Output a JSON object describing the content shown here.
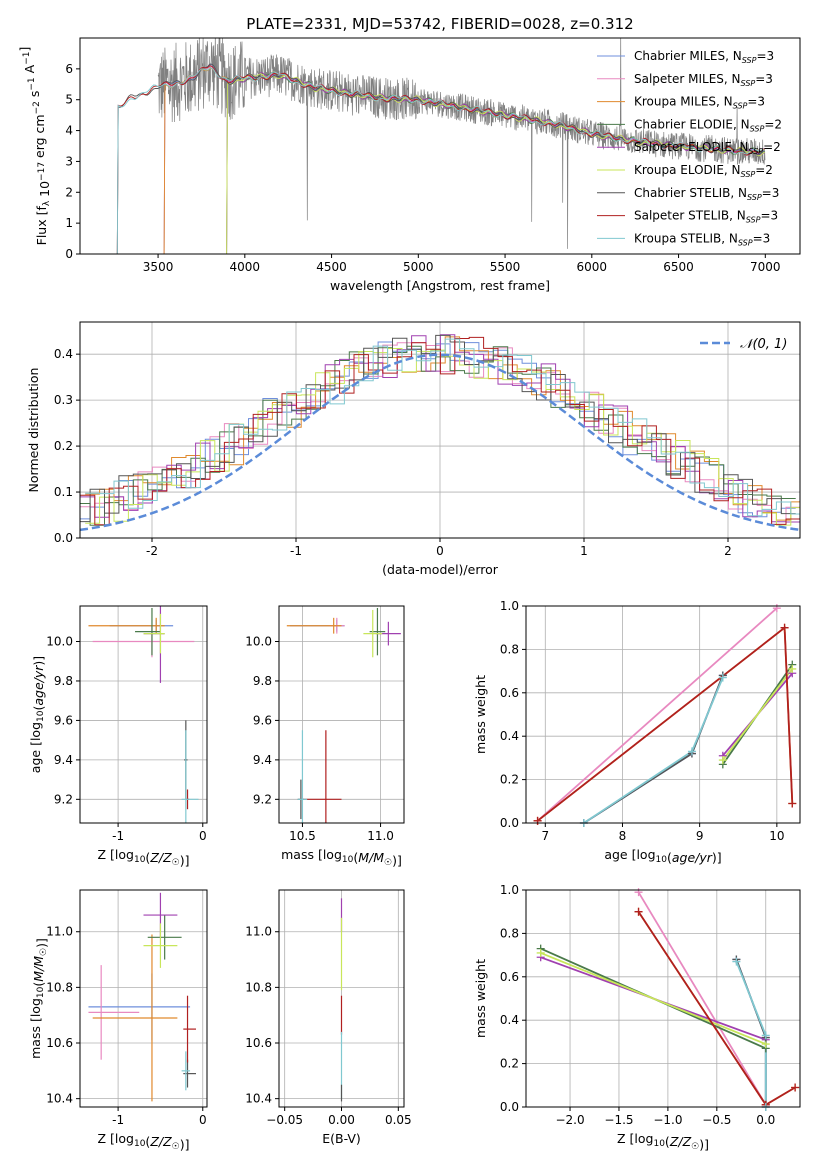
{
  "title": "PLATE=2331, MJD=53742, FIBERID=0028, z=0.312",
  "colors": {
    "Chabrier MILES": "#6f8fdc",
    "Salpeter MILES": "#e889c0",
    "Kroupa MILES": "#e08a2e",
    "Chabrier ELODIE": "#4a7a4a",
    "Salpeter ELODIE": "#a040b0",
    "Kroupa ELODIE": "#c8e65a",
    "Chabrier STELIB": "#555555",
    "Salpeter STELIB": "#b02020",
    "Kroupa STELIB": "#80c8d0",
    "data": "#808080",
    "grid": "#b0b0b0"
  },
  "chart_data": [
    {
      "id": "spectrum",
      "type": "line",
      "xlabel": "wavelength [Angstrom, rest frame]",
      "ylabel": "Flux [f_λ 10^-17 erg cm^-2 s^-1 A^-1]",
      "xlim": [
        3050,
        7200
      ],
      "ylim": [
        0,
        7
      ],
      "xticks": [
        3500,
        4000,
        4500,
        5000,
        5500,
        6000,
        6500,
        7000
      ],
      "yticks": [
        0,
        1,
        2,
        3,
        4,
        5,
        6
      ],
      "grid": false,
      "legend_position": "top-right",
      "legend": [
        {
          "base": "Chabrier MILES, N",
          "sub": "SSP",
          "tail": "=3"
        },
        {
          "base": "Salpeter MILES, N",
          "sub": "SSP",
          "tail": "=3"
        },
        {
          "base": "Kroupa MILES, N",
          "sub": "SSP",
          "tail": "=3"
        },
        {
          "base": "Chabrier ELODIE, N",
          "sub": "SSP",
          "tail": "=2"
        },
        {
          "base": "Salpeter ELODIE, N",
          "sub": "SSP",
          "tail": "=2"
        },
        {
          "base": "Kroupa ELODIE, N",
          "sub": "SSP",
          "tail": "=2"
        },
        {
          "base": "Chabrier STELIB, N",
          "sub": "SSP",
          "tail": "=3"
        },
        {
          "base": "Salpeter STELIB, N",
          "sub": "SSP",
          "tail": "=3"
        },
        {
          "base": "Kroupa STELIB, N",
          "sub": "SSP",
          "tail": "=3"
        }
      ],
      "model_start": {
        "STELIB": 3270,
        "MILES": 3540,
        "ELODIE": 3900
      },
      "continuum": [
        [
          3280,
          4.7
        ],
        [
          3350,
          5.1
        ],
        [
          3500,
          5.4
        ],
        [
          3700,
          5.7
        ],
        [
          3800,
          6.1
        ],
        [
          3900,
          5.6
        ],
        [
          4000,
          5.7
        ],
        [
          4200,
          5.8
        ],
        [
          4400,
          5.4
        ],
        [
          4600,
          5.2
        ],
        [
          4800,
          5.05
        ],
        [
          5000,
          5.0
        ],
        [
          5200,
          4.8
        ],
        [
          5400,
          4.6
        ],
        [
          5600,
          4.4
        ],
        [
          5800,
          4.2
        ],
        [
          6000,
          3.9
        ],
        [
          6200,
          3.7
        ],
        [
          6400,
          3.55
        ],
        [
          6600,
          3.45
        ],
        [
          6800,
          3.35
        ],
        [
          7000,
          3.3
        ]
      ]
    },
    {
      "id": "residuals",
      "type": "line",
      "xlabel": "(data-model)/error",
      "ylabel": "Normed distribution",
      "xlim": [
        -2.5,
        2.5
      ],
      "ylim": [
        0,
        0.47
      ],
      "xticks": [
        -2,
        -1,
        0,
        1,
        2
      ],
      "yticks": [
        0.0,
        0.1,
        0.2,
        0.3,
        0.4
      ],
      "grid": true,
      "legend": "𝒩(0, 1)",
      "gaussian": {
        "mean": 0,
        "sigma": 1
      }
    },
    {
      "id": "age-vs-Z",
      "type": "scatter",
      "xlabel": "Z [log10(Z/Z☉)]",
      "ylabel": "age  [log10(age/yr)]",
      "xlim": [
        -1.45,
        0.05
      ],
      "ylim": [
        9.08,
        10.18
      ],
      "xticks": [
        -1,
        0
      ],
      "yticks": [
        9.2,
        9.4,
        9.6,
        9.8,
        10.0
      ],
      "grid": true,
      "points": [
        {
          "model": "Chabrier MILES",
          "x": -0.55,
          "y": 10.08,
          "xerr": [
            0.55,
            0.2
          ],
          "yerr": 0.03
        },
        {
          "model": "Salpeter MILES",
          "x": -0.6,
          "y": 10.0,
          "xerr": [
            0.7,
            0.5
          ],
          "yerr": 0.08
        },
        {
          "model": "Kroupa MILES",
          "x": -0.55,
          "y": 10.08,
          "xerr": [
            0.8,
            0.1
          ],
          "yerr": 0.04
        },
        {
          "model": "Chabrier ELODIE",
          "x": -0.6,
          "y": 10.05,
          "xerr": [
            0.2,
            0.1
          ],
          "yerr": 0.12
        },
        {
          "model": "Salpeter ELODIE",
          "x": -0.5,
          "y": 10.04,
          "xerr": [
            0.2,
            0.05
          ],
          "yerr": 0.25
        },
        {
          "model": "Kroupa ELODIE",
          "x": -0.5,
          "y": 10.04,
          "xerr": [
            0.2,
            0.05
          ],
          "yerr": 0.1
        },
        {
          "model": "Chabrier STELIB",
          "x": -0.2,
          "y": 9.4,
          "xerr": [
            0.02,
            0.02
          ],
          "yerr": 0.2
        },
        {
          "model": "Salpeter STELIB",
          "x": -0.18,
          "y": 9.2,
          "xerr": [
            0.02,
            0.02
          ],
          "yerr": 0.05
        },
        {
          "model": "Kroupa STELIB",
          "x": -0.2,
          "y": 9.2,
          "xerr": [
            0.05,
            0.15
          ],
          "yerr": 0.35
        }
      ]
    },
    {
      "id": "age-vs-mass",
      "type": "scatter",
      "xlabel": "mass [log10(M/M☉)]",
      "ylabel": "",
      "xlim": [
        10.35,
        11.15
      ],
      "ylim": [
        9.08,
        10.18
      ],
      "xticks": [
        10.5,
        11.0
      ],
      "yticks": [
        9.2,
        9.4,
        9.6,
        9.8,
        10.0
      ],
      "grid": true,
      "points": [
        {
          "model": "Chabrier MILES",
          "x": 10.72,
          "y": 10.08,
          "xerr": [
            0.3,
            0.05
          ],
          "yerr": 0.03
        },
        {
          "model": "Salpeter MILES",
          "x": 10.72,
          "y": 10.08,
          "xerr": [
            0.05,
            0.05
          ],
          "yerr": 0.04
        },
        {
          "model": "Kroupa MILES",
          "x": 10.7,
          "y": 10.08,
          "xerr": [
            0.3,
            0.05
          ],
          "yerr": 0.04
        },
        {
          "model": "Chabrier ELODIE",
          "x": 10.98,
          "y": 10.05,
          "xerr": [
            0.05,
            0.05
          ],
          "yerr": 0.12
        },
        {
          "model": "Salpeter ELODIE",
          "x": 11.05,
          "y": 10.04,
          "xerr": [
            0.08,
            0.08
          ],
          "yerr": 0.06
        },
        {
          "model": "Kroupa ELODIE",
          "x": 10.95,
          "y": 10.04,
          "xerr": [
            0.06,
            0.06
          ],
          "yerr": 0.12
        },
        {
          "model": "Chabrier STELIB",
          "x": 10.49,
          "y": 9.2,
          "xerr": [
            0.02,
            0.02
          ],
          "yerr": 0.1
        },
        {
          "model": "Salpeter STELIB",
          "x": 10.65,
          "y": 9.2,
          "xerr": [
            0.15,
            0.1
          ],
          "yerr": 0.35
        },
        {
          "model": "Kroupa STELIB",
          "x": 10.5,
          "y": 9.2,
          "xerr": [
            0.03,
            0.03
          ],
          "yerr": 0.35
        }
      ]
    },
    {
      "id": "weight-vs-age",
      "type": "line",
      "xlabel": "age  [log10(age/yr)]",
      "ylabel": "mass weight",
      "xlim": [
        6.75,
        10.3
      ],
      "ylim": [
        0,
        1
      ],
      "xticks": [
        7,
        8,
        9,
        10
      ],
      "yticks": [
        0.0,
        0.2,
        0.4,
        0.6,
        0.8,
        1.0
      ],
      "grid": true,
      "series": [
        {
          "model": "Chabrier MILES",
          "x": [
            7.5,
            8.9,
            9.3
          ],
          "y": [
            0.0,
            0.32,
            0.68
          ]
        },
        {
          "model": "Salpeter MILES",
          "x": [
            6.9,
            10.0
          ],
          "y": [
            0.01,
            0.99
          ]
        },
        {
          "model": "Kroupa MILES",
          "x": [
            6.9,
            10.1,
            10.2
          ],
          "y": [
            0.01,
            0.9,
            0.09
          ]
        },
        {
          "model": "Chabrier ELODIE",
          "x": [
            9.3,
            10.2
          ],
          "y": [
            0.27,
            0.73
          ]
        },
        {
          "model": "Salpeter ELODIE",
          "x": [
            9.3,
            10.2
          ],
          "y": [
            0.31,
            0.69
          ]
        },
        {
          "model": "Kroupa ELODIE",
          "x": [
            9.3,
            10.2
          ],
          "y": [
            0.29,
            0.71
          ]
        },
        {
          "model": "Chabrier STELIB",
          "x": [
            7.5,
            8.9,
            9.3
          ],
          "y": [
            0.0,
            0.32,
            0.68
          ]
        },
        {
          "model": "Salpeter STELIB",
          "x": [
            6.9,
            10.1,
            10.2
          ],
          "y": [
            0.01,
            0.9,
            0.09
          ]
        },
        {
          "model": "Kroupa STELIB",
          "x": [
            7.5,
            8.9,
            9.3
          ],
          "y": [
            0.0,
            0.33,
            0.67
          ]
        }
      ]
    },
    {
      "id": "mass-vs-Z",
      "type": "scatter",
      "xlabel": "Z [log10(Z/Z☉)]",
      "ylabel": "mass [log10(M/M☉)]",
      "xlim": [
        -1.45,
        0.05
      ],
      "ylim": [
        10.37,
        11.15
      ],
      "xticks": [
        -1,
        0
      ],
      "yticks": [
        10.4,
        10.6,
        10.8,
        11.0
      ],
      "grid": true,
      "points": [
        {
          "model": "Chabrier MILES",
          "x": -0.6,
          "y": 10.73,
          "xerr": [
            0.75,
            0.45
          ],
          "yerr": 0.12
        },
        {
          "model": "Salpeter MILES",
          "x": -1.2,
          "y": 10.71,
          "xerr": [
            0.15,
            0.45
          ],
          "yerr": 0.17
        },
        {
          "model": "Kroupa MILES",
          "x": -0.6,
          "y": 10.69,
          "xerr": [
            0.7,
            0.3
          ],
          "yerr": 0.3
        },
        {
          "model": "Chabrier ELODIE",
          "x": -0.45,
          "y": 10.98,
          "xerr": [
            0.2,
            0.2
          ],
          "yerr": 0.08
        },
        {
          "model": "Salpeter ELODIE",
          "x": -0.5,
          "y": 11.06,
          "xerr": [
            0.2,
            0.2
          ],
          "yerr": 0.08
        },
        {
          "model": "Kroupa ELODIE",
          "x": -0.5,
          "y": 10.95,
          "xerr": [
            0.2,
            0.2
          ],
          "yerr": 0.08
        },
        {
          "model": "Chabrier STELIB",
          "x": -0.18,
          "y": 10.49,
          "xerr": [
            0.05,
            0.1
          ],
          "yerr": 0.05
        },
        {
          "model": "Salpeter STELIB",
          "x": -0.18,
          "y": 10.65,
          "xerr": [
            0.05,
            0.1
          ],
          "yerr": 0.12
        },
        {
          "model": "Kroupa STELIB",
          "x": -0.2,
          "y": 10.5,
          "xerr": [
            0.05,
            0.05
          ],
          "yerr": 0.07
        }
      ]
    },
    {
      "id": "mass-vs-EBV",
      "type": "scatter",
      "xlabel": "E(B-V)",
      "ylabel": "",
      "xlim": [
        -0.055,
        0.055
      ],
      "ylim": [
        10.37,
        11.15
      ],
      "xticks": [
        -0.05,
        0.0,
        0.05
      ],
      "yticks": [
        10.4,
        10.6,
        10.8,
        11.0
      ],
      "grid": true,
      "points": [
        {
          "model": "Salpeter ELODIE",
          "x": 0.0,
          "y": 11.06,
          "xerr": [
            0,
            0
          ],
          "yerr": 0.06
        },
        {
          "model": "Kroupa ELODIE",
          "x": 0.0,
          "y": 10.92,
          "xerr": [
            0,
            0
          ],
          "yerr": 0.13
        },
        {
          "model": "Salpeter STELIB",
          "x": 0.0,
          "y": 10.7,
          "xerr": [
            0,
            0
          ],
          "yerr": 0.07
        },
        {
          "model": "Kroupa STELIB",
          "x": 0.0,
          "y": 10.52,
          "xerr": [
            0,
            0
          ],
          "yerr": 0.12
        },
        {
          "model": "Chabrier STELIB",
          "x": 0.0,
          "y": 10.42,
          "xerr": [
            0,
            0
          ],
          "yerr": 0.03
        }
      ]
    },
    {
      "id": "weight-vs-Z",
      "type": "line",
      "xlabel": "Z [log10(Z/Z☉)]",
      "ylabel": "mass weight",
      "xlim": [
        -2.45,
        0.35
      ],
      "ylim": [
        0,
        1
      ],
      "xticks": [
        -2.0,
        -1.5,
        -1.0,
        -0.5,
        0.0
      ],
      "yticks": [
        0.0,
        0.2,
        0.4,
        0.6,
        0.8,
        1.0
      ],
      "grid": true,
      "series": [
        {
          "model": "Chabrier MILES",
          "x": [
            -0.3,
            0.0,
            0.0
          ],
          "y": [
            0.68,
            0.32,
            0.0
          ]
        },
        {
          "model": "Salpeter MILES",
          "x": [
            -1.3,
            0.0
          ],
          "y": [
            0.99,
            0.01
          ]
        },
        {
          "model": "Kroupa MILES",
          "x": [
            -1.3,
            0.0,
            0.3
          ],
          "y": [
            0.9,
            0.01,
            0.09
          ]
        },
        {
          "model": "Chabrier ELODIE",
          "x": [
            -2.3,
            0.0
          ],
          "y": [
            0.73,
            0.27
          ]
        },
        {
          "model": "Salpeter ELODIE",
          "x": [
            -2.3,
            0.0
          ],
          "y": [
            0.69,
            0.31
          ]
        },
        {
          "model": "Kroupa ELODIE",
          "x": [
            -2.3,
            0.0
          ],
          "y": [
            0.71,
            0.29
          ]
        },
        {
          "model": "Chabrier STELIB",
          "x": [
            -0.3,
            0.0,
            0.0
          ],
          "y": [
            0.68,
            0.32,
            0.0
          ]
        },
        {
          "model": "Salpeter STELIB",
          "x": [
            -1.3,
            0.0,
            0.3
          ],
          "y": [
            0.9,
            0.01,
            0.09
          ]
        },
        {
          "model": "Kroupa STELIB",
          "x": [
            -0.3,
            0.0,
            0.0
          ],
          "y": [
            0.67,
            0.33,
            0.0
          ]
        }
      ]
    }
  ]
}
